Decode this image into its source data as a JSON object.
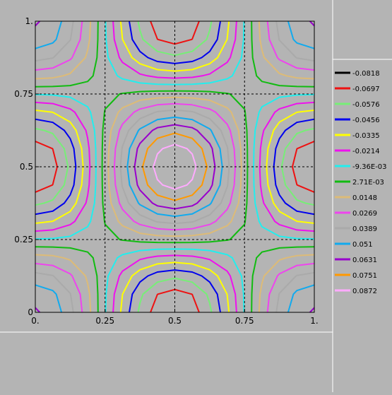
{
  "chart_data": {
    "type": "contour",
    "title": "",
    "xlabel": "",
    "ylabel": "",
    "xlim": [
      0,
      1
    ],
    "ylim": [
      0,
      1
    ],
    "x_ticks": [
      {
        "value": 0,
        "label": "0."
      },
      {
        "value": 0.25,
        "label": "0.25"
      },
      {
        "value": 0.5,
        "label": "0.5"
      },
      {
        "value": 0.75,
        "label": "0.75"
      },
      {
        "value": 1,
        "label": "1."
      }
    ],
    "y_ticks": [
      {
        "value": 0,
        "label": "0"
      },
      {
        "value": 0.25,
        "label": "0.25"
      },
      {
        "value": 0.5,
        "label": "0.5"
      },
      {
        "value": 0.75,
        "label": "0.75"
      },
      {
        "value": 1,
        "label": "1."
      }
    ],
    "grid": "dashed lines at 0.25, 0.5, 0.75",
    "legend_position": "right",
    "colors": {
      "background": "#b4b4b4",
      "frame": "#ffffff"
    },
    "contour_levels": [
      {
        "label": "-0.0818",
        "value": -0.0818,
        "color": "#000000"
      },
      {
        "label": "-0.0697",
        "value": -0.0697,
        "color": "#ee1111"
      },
      {
        "label": "-0.0576",
        "value": -0.0576,
        "color": "#77ee77"
      },
      {
        "label": "-0.0456",
        "value": -0.0456,
        "color": "#0000ee"
      },
      {
        "label": "-0.0335",
        "value": -0.0335,
        "color": "#ffff00"
      },
      {
        "label": "-0.0214",
        "value": -0.0214,
        "color": "#ee11ee"
      },
      {
        "label": "-9.36E-03",
        "value": -0.00936,
        "color": "#22eeee"
      },
      {
        "label": "2.71E-03",
        "value": 0.00271,
        "color": "#11bb11"
      },
      {
        "label": "0.0148",
        "value": 0.0148,
        "color": "#ddbb77"
      },
      {
        "label": "0.0269",
        "value": 0.0269,
        "color": "#ee44ee"
      },
      {
        "label": "0.0389",
        "value": 0.0389,
        "color": "#aaaaaa"
      },
      {
        "label": "0.051",
        "value": 0.051,
        "color": "#11aaee"
      },
      {
        "label": "0.0631",
        "value": 0.0631,
        "color": "#9900cc"
      },
      {
        "label": "0.0751",
        "value": 0.0751,
        "color": "#ff9900"
      },
      {
        "label": "0.0872",
        "value": 0.0872,
        "color": "#ffaaff"
      }
    ]
  }
}
